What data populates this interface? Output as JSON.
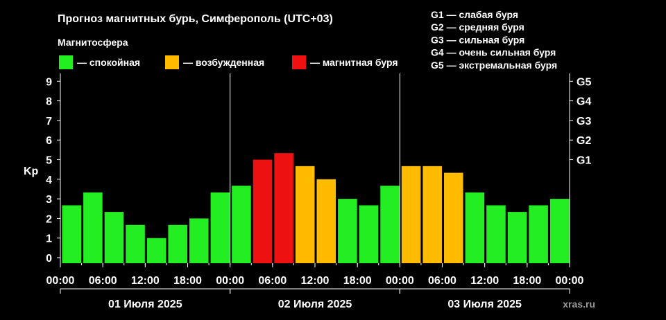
{
  "chart_data": {
    "type": "bar",
    "title": "Прогноз магнитных бурь, Симферополь (UTC+03)",
    "legend_title": "Магнитосфера",
    "legend": [
      {
        "key": "calm",
        "label": "— спокойная",
        "color": "#22ee22"
      },
      {
        "key": "excited",
        "label": "— возбужденная",
        "color": "#ffbb00"
      },
      {
        "key": "storm",
        "label": "— магнитная буря",
        "color": "#ee1111"
      }
    ],
    "g_scale": [
      "G1 — слабая буря",
      "G2 — средняя буря",
      "G3 — сильная буря",
      "G4 — очень сильная буря",
      "G5 — экстремальная буря"
    ],
    "ylabel": "Kp",
    "ylim": [
      0,
      9
    ],
    "y_ticks": [
      "0",
      "1",
      "2",
      "3",
      "4",
      "5",
      "6",
      "7",
      "8",
      "9"
    ],
    "right_ticks": [
      {
        "label": "G1",
        "kp": 5
      },
      {
        "label": "G2",
        "kp": 6
      },
      {
        "label": "G3",
        "kp": 7
      },
      {
        "label": "G4",
        "kp": 8
      },
      {
        "label": "G5",
        "kp": 9
      }
    ],
    "x_tick_labels": [
      "00:00",
      "06:00",
      "12:00",
      "18:00",
      "00:00",
      "06:00",
      "12:00",
      "18:00",
      "00:00",
      "06:00",
      "12:00",
      "18:00",
      "00:00"
    ],
    "days": [
      "01 Июля 2025",
      "02 Июля 2025",
      "03 Июля 2025"
    ],
    "series": [
      {
        "values": [
          2.67,
          3.33,
          2.33,
          1.67,
          1.0,
          1.67,
          2.0,
          3.33,
          3.67,
          5.0,
          5.33,
          4.67,
          4.0,
          3.0,
          2.67,
          3.67,
          4.67,
          4.67,
          4.33,
          3.33,
          2.67,
          2.33,
          2.67,
          3.0
        ]
      }
    ],
    "grid": false,
    "watermark": "xras.ru"
  }
}
